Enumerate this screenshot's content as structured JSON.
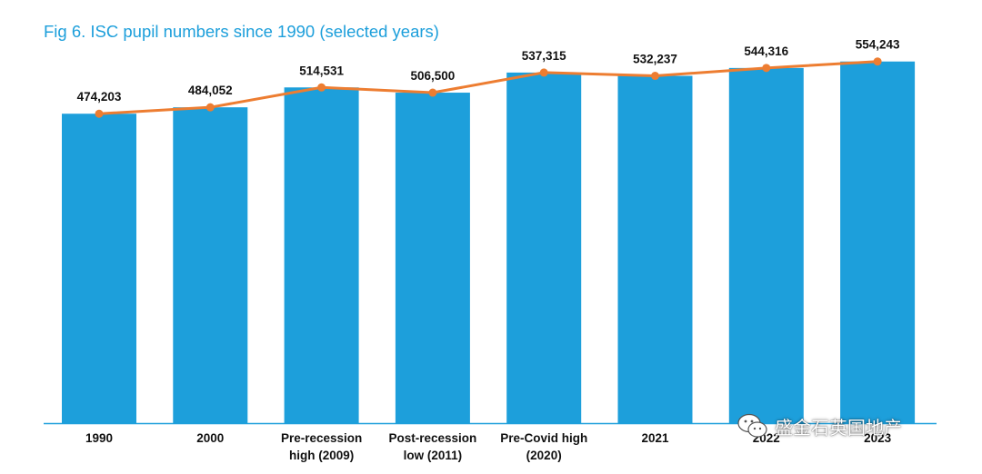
{
  "title": "Fig 6. ISC pupil numbers since 1990 (selected years)",
  "colors": {
    "bar": "#1d9fdb",
    "line": "#ed7d31",
    "title": "#1d9fdb",
    "axis": "#1d9fdb",
    "text": "#111111"
  },
  "chart_data": {
    "type": "bar",
    "categories": [
      [
        "1990"
      ],
      [
        "2000"
      ],
      [
        "Pre-recession",
        "high (2009)"
      ],
      [
        "Post-recession",
        "low (2011)"
      ],
      [
        "Pre-Covid high",
        "(2020)"
      ],
      [
        "2021"
      ],
      [
        "2022"
      ],
      [
        "2023"
      ]
    ],
    "values": [
      474203,
      484052,
      514531,
      506500,
      537315,
      532237,
      544316,
      554243
    ],
    "value_labels": [
      "474,203",
      "484,052",
      "514,531",
      "506,500",
      "537,315",
      "532,237",
      "544,316",
      "554,243"
    ],
    "overlay": "line-with-markers",
    "ylim": [
      0,
      565000
    ],
    "xlabel": "",
    "ylabel": "",
    "grid": false,
    "legend": "none"
  },
  "watermark": {
    "icon": "wechat-icon",
    "text": "盛金石英国地产"
  }
}
